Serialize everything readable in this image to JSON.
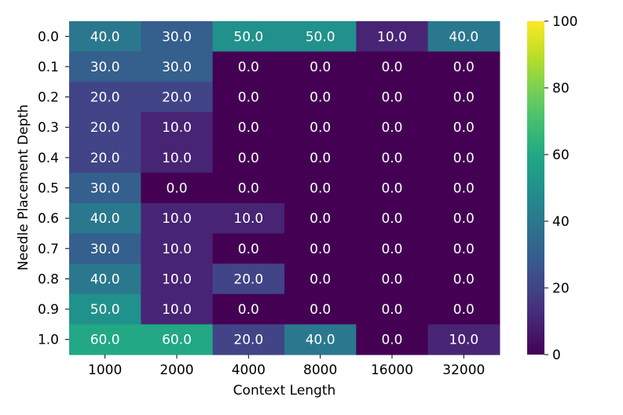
{
  "chart_data": {
    "type": "heatmap",
    "xlabel": "Context Length",
    "ylabel": "Needle Placement Depth",
    "x_categories": [
      "1000",
      "2000",
      "4000",
      "8000",
      "16000",
      "32000"
    ],
    "y_categories": [
      "0.0",
      "0.1",
      "0.2",
      "0.3",
      "0.4",
      "0.5",
      "0.6",
      "0.7",
      "0.8",
      "0.9",
      "1.0"
    ],
    "values": [
      [
        40.0,
        30.0,
        50.0,
        50.0,
        10.0,
        40.0
      ],
      [
        30.0,
        30.0,
        0.0,
        0.0,
        0.0,
        0.0
      ],
      [
        20.0,
        20.0,
        0.0,
        0.0,
        0.0,
        0.0
      ],
      [
        20.0,
        10.0,
        0.0,
        0.0,
        0.0,
        0.0
      ],
      [
        20.0,
        10.0,
        0.0,
        0.0,
        0.0,
        0.0
      ],
      [
        30.0,
        0.0,
        0.0,
        0.0,
        0.0,
        0.0
      ],
      [
        40.0,
        10.0,
        10.0,
        0.0,
        0.0,
        0.0
      ],
      [
        30.0,
        10.0,
        0.0,
        0.0,
        0.0,
        0.0
      ],
      [
        40.0,
        10.0,
        20.0,
        0.0,
        0.0,
        0.0
      ],
      [
        50.0,
        10.0,
        0.0,
        0.0,
        0.0,
        0.0
      ],
      [
        60.0,
        60.0,
        20.0,
        40.0,
        0.0,
        10.0
      ]
    ],
    "colorbar": {
      "range": [
        0,
        100
      ],
      "ticks": [
        0,
        20,
        40,
        60,
        80,
        100
      ],
      "colormap": "viridis"
    }
  }
}
